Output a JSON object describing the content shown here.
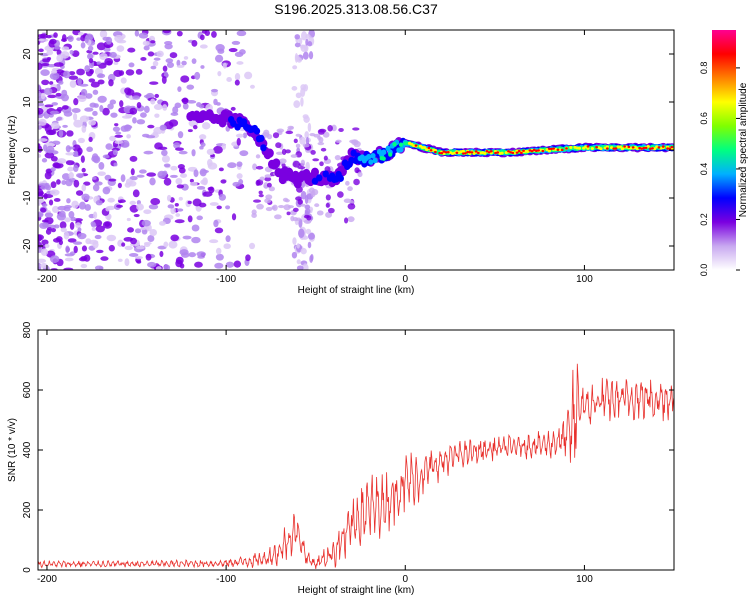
{
  "page_title": "S196.2025.313.08.56.C37",
  "chart_data": [
    {
      "type": "heatmap",
      "name": "spectrogram",
      "xlabel": "Height of straight line (km)",
      "ylabel": "Frequency (Hz)",
      "xlim": [
        -205,
        150
      ],
      "ylim": [
        -25,
        25
      ],
      "xticks": [
        -200,
        -100,
        0,
        100
      ],
      "xtick_labels": [
        "-200",
        "-100",
        "0",
        "100"
      ],
      "yticks": [
        20,
        10,
        0,
        -10,
        -20
      ],
      "ytick_labels": [
        "20",
        "10",
        "0",
        "-10",
        "-20"
      ],
      "colorbar": {
        "label": "Normalized spectral amplitude",
        "range": [
          0,
          0.95
        ],
        "ticks": [
          0.0,
          0.2,
          0.4,
          0.6,
          0.8
        ],
        "tick_labels": [
          "0.0",
          "0.2",
          "0.4",
          "0.6",
          "0.8"
        ],
        "colormap": [
          "#ffffff",
          "#c8a8f0",
          "#7a00e0",
          "#0000ff",
          "#00b0ff",
          "#00ff80",
          "#80ff00",
          "#ffff00",
          "#ff8000",
          "#ff0000",
          "#ff0090"
        ]
      },
      "signal_track": {
        "x": [
          -120,
          -100,
          -90,
          -80,
          -70,
          -60,
          -50,
          -40,
          -35,
          -30,
          -20,
          -10,
          0,
          10,
          20,
          40,
          60,
          80,
          100,
          120,
          150
        ],
        "frequency": [
          6.5,
          6.5,
          5.5,
          2.0,
          -5.0,
          -6.0,
          -5.5,
          -6.5,
          -4.5,
          -1.5,
          -2.0,
          -0.5,
          1.5,
          0.5,
          -0.5,
          -0.5,
          -0.5,
          0.0,
          0.5,
          0.5,
          0.5
        ],
        "amplitude": [
          0.25,
          0.25,
          0.35,
          0.3,
          0.2,
          0.2,
          0.25,
          0.35,
          0.3,
          0.4,
          0.5,
          0.55,
          0.65,
          0.8,
          0.85,
          0.85,
          0.85,
          0.8,
          0.75,
          0.8,
          0.85
        ]
      },
      "noise_region": {
        "x_range": [
          -205,
          -85
        ],
        "frequency_range": [
          -25,
          25
        ],
        "amplitude": [
          0.05,
          0.2
        ]
      }
    },
    {
      "type": "line",
      "name": "snr",
      "xlabel": "Height of straight line (km)",
      "ylabel": "SNR (10 * v/v)",
      "xlim": [
        -205,
        150
      ],
      "ylim": [
        0,
        800
      ],
      "xticks": [
        -200,
        -100,
        0,
        100
      ],
      "xtick_labels": [
        "-200",
        "-100",
        "0",
        "100"
      ],
      "yticks": [
        0,
        200,
        400,
        600,
        800
      ],
      "ytick_labels": [
        "0",
        "200",
        "400",
        "600",
        "800"
      ],
      "color": "#e8302c",
      "series_envelope": {
        "x": [
          -205,
          -150,
          -100,
          -80,
          -70,
          -65,
          -60,
          -55,
          -50,
          -40,
          -35,
          -30,
          -25,
          -20,
          -10,
          0,
          10,
          20,
          30,
          40,
          50,
          60,
          70,
          80,
          85,
          90,
          93,
          95,
          97,
          100,
          110,
          120,
          130,
          140,
          150
        ],
        "mean": [
          20,
          20,
          22,
          35,
          60,
          110,
          130,
          40,
          20,
          60,
          100,
          140,
          190,
          200,
          230,
          290,
          320,
          360,
          385,
          395,
          405,
          410,
          415,
          420,
          430,
          440,
          470,
          520,
          570,
          540,
          565,
          570,
          575,
          570,
          575
        ],
        "spread": [
          12,
          12,
          14,
          30,
          50,
          80,
          70,
          25,
          20,
          60,
          90,
          110,
          120,
          120,
          110,
          110,
          90,
          60,
          50,
          45,
          45,
          45,
          45,
          50,
          60,
          80,
          160,
          260,
          120,
          80,
          80,
          80,
          80,
          80,
          80
        ]
      }
    }
  ]
}
